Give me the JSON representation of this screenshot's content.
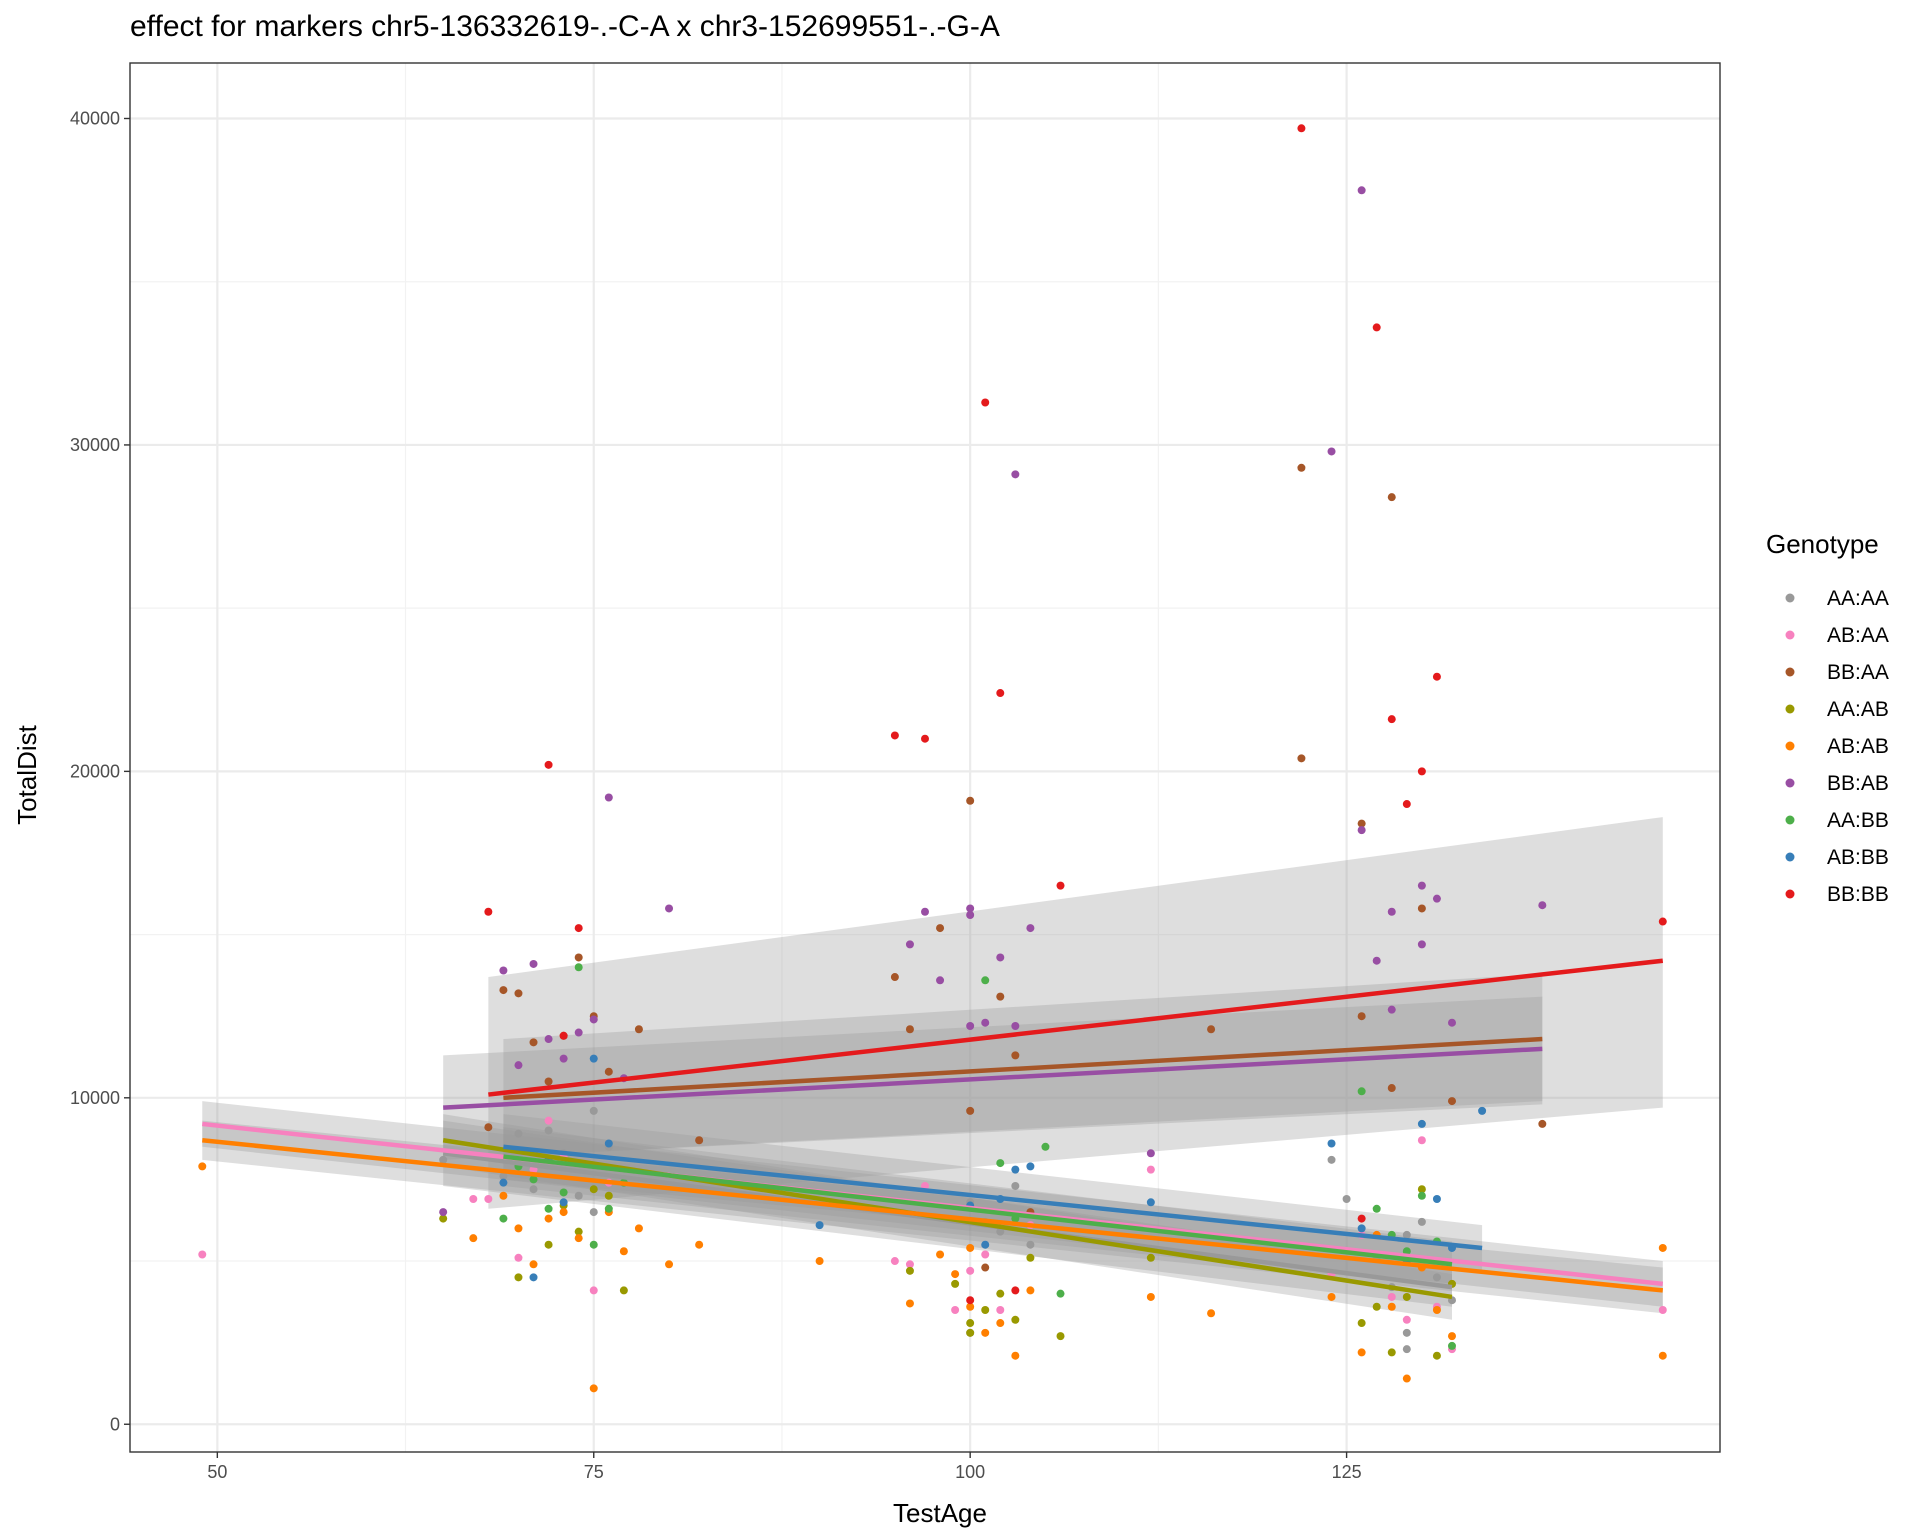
{
  "chart_data": {
    "type": "scatter",
    "title": "effect for markers chr5-136332619-.-C-A x chr3-152699551-.-G-A",
    "xlabel": "TestAge",
    "ylabel": "TotalDist",
    "xlim": [
      44.2,
      149.8
    ],
    "ylim": [
      -850,
      41700
    ],
    "x_ticks": [
      50,
      75,
      100,
      125
    ],
    "y_ticks": [
      0,
      10000,
      20000,
      30000,
      40000
    ],
    "x_tick_labels": [
      "50",
      "75",
      "100",
      "125"
    ],
    "y_tick_labels": [
      "0",
      "10000",
      "20000",
      "30000",
      "40000"
    ],
    "grid": true,
    "legend": {
      "title": "Genotype",
      "position": "right"
    },
    "series": [
      {
        "name": "AA:AA",
        "color": "#999999",
        "points": [
          [
            65,
            8100
          ],
          [
            69,
            7600
          ],
          [
            70,
            8900
          ],
          [
            71,
            7200
          ],
          [
            72,
            9000
          ],
          [
            73,
            8300
          ],
          [
            74,
            7000
          ],
          [
            75,
            9600
          ],
          [
            75,
            6500
          ],
          [
            76,
            8500
          ],
          [
            100,
            2800
          ],
          [
            100,
            6800
          ],
          [
            101,
            6200
          ],
          [
            102,
            5900
          ],
          [
            103,
            7300
          ],
          [
            104,
            5500
          ],
          [
            124,
            8100
          ],
          [
            125,
            6900
          ],
          [
            127,
            5100
          ],
          [
            128,
            4200
          ],
          [
            129,
            2800
          ],
          [
            129,
            5800
          ],
          [
            130,
            6200
          ],
          [
            131,
            4500
          ],
          [
            132,
            3800
          ],
          [
            129,
            2300
          ]
        ],
        "fit": {
          "x": [
            65,
            132
          ],
          "y": [
            8300,
            4200
          ],
          "band_lo": [
            7300,
            3600
          ],
          "band_hi": [
            9300,
            4800
          ]
        }
      },
      {
        "name": "AB:AA",
        "color": "#F781BF",
        "points": [
          [
            49,
            5200
          ],
          [
            67,
            6900
          ],
          [
            68,
            6900
          ],
          [
            70,
            5100
          ],
          [
            71,
            7800
          ],
          [
            72,
            9300
          ],
          [
            73,
            8200
          ],
          [
            75,
            4100
          ],
          [
            76,
            7400
          ],
          [
            95,
            5000
          ],
          [
            96,
            4900
          ],
          [
            97,
            7300
          ],
          [
            99,
            3500
          ],
          [
            100,
            4700
          ],
          [
            101,
            5200
          ],
          [
            102,
            3500
          ],
          [
            104,
            6100
          ],
          [
            112,
            7800
          ],
          [
            124,
            4600
          ],
          [
            126,
            5800
          ],
          [
            128,
            3900
          ],
          [
            129,
            3200
          ],
          [
            130,
            8700
          ],
          [
            131,
            3600
          ],
          [
            132,
            2300
          ],
          [
            146,
            3500
          ]
        ],
        "fit": {
          "x": [
            49,
            146
          ],
          "y": [
            9200,
            4300
          ],
          "band_lo": [
            8500,
            3600
          ],
          "band_hi": [
            9900,
            5000
          ]
        }
      },
      {
        "name": "BB:AA",
        "color": "#A65628",
        "points": [
          [
            68,
            9100
          ],
          [
            69,
            13300
          ],
          [
            70,
            13200
          ],
          [
            71,
            11700
          ],
          [
            72,
            10500
          ],
          [
            73,
            11900
          ],
          [
            74,
            14300
          ],
          [
            75,
            12500
          ],
          [
            76,
            10800
          ],
          [
            78,
            12100
          ],
          [
            82,
            8700
          ],
          [
            95,
            13700
          ],
          [
            96,
            12100
          ],
          [
            98,
            15200
          ],
          [
            100,
            19100
          ],
          [
            100,
            9600
          ],
          [
            101,
            4800
          ],
          [
            102,
            13100
          ],
          [
            103,
            11300
          ],
          [
            104,
            6500
          ],
          [
            116,
            12100
          ],
          [
            122,
            29300
          ],
          [
            122,
            20400
          ],
          [
            126,
            18400
          ],
          [
            126,
            12500
          ],
          [
            128,
            28400
          ],
          [
            128,
            10300
          ],
          [
            130,
            15800
          ],
          [
            132,
            9900
          ],
          [
            138,
            9200
          ]
        ],
        "fit": {
          "x": [
            69,
            138
          ],
          "y": [
            10000,
            11800
          ],
          "band_lo": [
            8200,
            9800
          ],
          "band_hi": [
            11800,
            13800
          ]
        }
      },
      {
        "name": "AA:AB",
        "color": "#999900",
        "points": [
          [
            65,
            6300
          ],
          [
            70,
            4500
          ],
          [
            72,
            5500
          ],
          [
            73,
            6700
          ],
          [
            74,
            5900
          ],
          [
            75,
            7200
          ],
          [
            76,
            7000
          ],
          [
            77,
            4100
          ],
          [
            96,
            4700
          ],
          [
            99,
            4300
          ],
          [
            100,
            3100
          ],
          [
            100,
            2800
          ],
          [
            101,
            3500
          ],
          [
            102,
            4000
          ],
          [
            103,
            3200
          ],
          [
            104,
            5100
          ],
          [
            106,
            2700
          ],
          [
            112,
            5100
          ],
          [
            126,
            3100
          ],
          [
            127,
            3600
          ],
          [
            128,
            2200
          ],
          [
            129,
            3900
          ],
          [
            130,
            7200
          ],
          [
            131,
            2100
          ],
          [
            132,
            4300
          ]
        ],
        "fit": {
          "x": [
            65,
            132
          ],
          "y": [
            8700,
            3900
          ],
          "band_lo": [
            7900,
            3200
          ],
          "band_hi": [
            9500,
            4600
          ]
        }
      },
      {
        "name": "AB:AB",
        "color": "#FF7F00",
        "points": [
          [
            49,
            7900
          ],
          [
            67,
            5700
          ],
          [
            69,
            7000
          ],
          [
            70,
            6000
          ],
          [
            71,
            4900
          ],
          [
            72,
            6300
          ],
          [
            73,
            6500
          ],
          [
            74,
            5700
          ],
          [
            75,
            1100
          ],
          [
            76,
            6500
          ],
          [
            77,
            5300
          ],
          [
            78,
            6000
          ],
          [
            80,
            4900
          ],
          [
            82,
            5500
          ],
          [
            90,
            5000
          ],
          [
            96,
            3700
          ],
          [
            98,
            5200
          ],
          [
            99,
            4600
          ],
          [
            100,
            3600
          ],
          [
            100,
            5400
          ],
          [
            101,
            2800
          ],
          [
            102,
            3100
          ],
          [
            103,
            2100
          ],
          [
            104,
            4100
          ],
          [
            112,
            3900
          ],
          [
            116,
            3400
          ],
          [
            124,
            3900
          ],
          [
            126,
            2200
          ],
          [
            127,
            5800
          ],
          [
            128,
            3600
          ],
          [
            129,
            1400
          ],
          [
            130,
            4800
          ],
          [
            131,
            3500
          ],
          [
            132,
            2700
          ],
          [
            146,
            5400
          ],
          [
            146,
            2100
          ]
        ],
        "fit": {
          "x": [
            49,
            146
          ],
          "y": [
            8700,
            4100
          ],
          "band_lo": [
            8100,
            3400
          ],
          "band_hi": [
            9300,
            4800
          ]
        }
      },
      {
        "name": "BB:AB",
        "color": "#984EA3",
        "points": [
          [
            65,
            6500
          ],
          [
            69,
            13900
          ],
          [
            70,
            11000
          ],
          [
            71,
            14100
          ],
          [
            72,
            11800
          ],
          [
            73,
            11200
          ],
          [
            74,
            12000
          ],
          [
            75,
            12400
          ],
          [
            76,
            19200
          ],
          [
            77,
            10600
          ],
          [
            80,
            15800
          ],
          [
            96,
            14700
          ],
          [
            97,
            15700
          ],
          [
            98,
            13600
          ],
          [
            100,
            15800
          ],
          [
            100,
            15600
          ],
          [
            100,
            12200
          ],
          [
            101,
            12300
          ],
          [
            102,
            14300
          ],
          [
            103,
            29100
          ],
          [
            103,
            12200
          ],
          [
            104,
            15200
          ],
          [
            112,
            8300
          ],
          [
            124,
            29800
          ],
          [
            126,
            37800
          ],
          [
            126,
            18200
          ],
          [
            127,
            14200
          ],
          [
            128,
            15700
          ],
          [
            128,
            12700
          ],
          [
            130,
            16500
          ],
          [
            130,
            14700
          ],
          [
            131,
            16100
          ],
          [
            132,
            12300
          ],
          [
            138,
            15900
          ]
        ],
        "fit": {
          "x": [
            65,
            138
          ],
          "y": [
            9700,
            11500
          ],
          "band_lo": [
            8100,
            9900
          ],
          "band_hi": [
            11300,
            13100
          ]
        }
      },
      {
        "name": "AA:BB",
        "color": "#4DAF4A",
        "points": [
          [
            69,
            6300
          ],
          [
            70,
            7900
          ],
          [
            71,
            7500
          ],
          [
            72,
            6600
          ],
          [
            73,
            7100
          ],
          [
            74,
            14000
          ],
          [
            75,
            5500
          ],
          [
            76,
            6600
          ],
          [
            77,
            7400
          ],
          [
            101,
            13600
          ],
          [
            102,
            8000
          ],
          [
            103,
            6300
          ],
          [
            105,
            8500
          ],
          [
            106,
            4000
          ],
          [
            126,
            10200
          ],
          [
            127,
            6600
          ],
          [
            128,
            5800
          ],
          [
            129,
            5300
          ],
          [
            130,
            7000
          ],
          [
            131,
            5600
          ],
          [
            132,
            2400
          ]
        ],
        "fit": {
          "x": [
            69,
            132
          ],
          "y": [
            8200,
            4900
          ],
          "band_lo": [
            7300,
            4200
          ],
          "band_hi": [
            9100,
            5600
          ]
        }
      },
      {
        "name": "AB:BB",
        "color": "#377EB8",
        "points": [
          [
            69,
            7400
          ],
          [
            71,
            4500
          ],
          [
            72,
            8100
          ],
          [
            73,
            6800
          ],
          [
            75,
            11200
          ],
          [
            76,
            8600
          ],
          [
            90,
            6100
          ],
          [
            100,
            6700
          ],
          [
            101,
            5500
          ],
          [
            102,
            6900
          ],
          [
            103,
            7800
          ],
          [
            104,
            7900
          ],
          [
            112,
            6800
          ],
          [
            124,
            8600
          ],
          [
            126,
            6000
          ],
          [
            129,
            5000
          ],
          [
            130,
            9200
          ],
          [
            131,
            6900
          ],
          [
            132,
            5400
          ],
          [
            134,
            9600
          ]
        ],
        "fit": {
          "x": [
            69,
            134
          ],
          "y": [
            8500,
            5400
          ],
          "band_lo": [
            7500,
            4700
          ],
          "band_hi": [
            9500,
            6100
          ]
        }
      },
      {
        "name": "BB:BB",
        "color": "#E41A1C",
        "points": [
          [
            68,
            15700
          ],
          [
            72,
            20200
          ],
          [
            73,
            11900
          ],
          [
            74,
            15200
          ],
          [
            95,
            21100
          ],
          [
            97,
            21000
          ],
          [
            100,
            3800
          ],
          [
            101,
            31300
          ],
          [
            102,
            22400
          ],
          [
            103,
            4100
          ],
          [
            106,
            16500
          ],
          [
            122,
            39700
          ],
          [
            127,
            33600
          ],
          [
            128,
            21600
          ],
          [
            129,
            19000
          ],
          [
            130,
            20000
          ],
          [
            131,
            22900
          ],
          [
            126,
            6300
          ],
          [
            146,
            15400
          ]
        ],
        "fit": {
          "x": [
            68,
            146
          ],
          "y": [
            10100,
            14200
          ],
          "band_lo": [
            6600,
            9700
          ],
          "band_hi": [
            13700,
            18600
          ]
        }
      }
    ]
  }
}
